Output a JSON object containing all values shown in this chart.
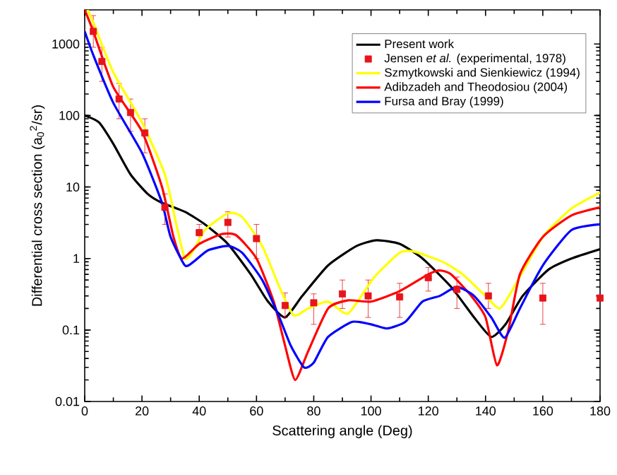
{
  "chart_data": {
    "type": "line",
    "xlabel": "Scattering angle (Deg)",
    "ylabel": "Differential cross section (a$_{0}$$^{2}$/sr)",
    "xlim": [
      0,
      180
    ],
    "xticks": [
      0,
      20,
      40,
      60,
      80,
      100,
      120,
      140,
      160,
      180
    ],
    "ylim": [
      0.01,
      3000
    ],
    "yticks": [
      0.01,
      0.1,
      1,
      10,
      100,
      1000
    ],
    "log": "y",
    "legend": "top right",
    "series": [
      {
        "name": "Present work",
        "color": "#000000",
        "x": [
          0,
          5,
          10,
          16,
          22,
          27,
          35,
          42,
          50,
          58,
          64,
          70,
          76,
          85,
          95,
          102,
          110,
          118,
          128,
          136,
          142,
          147,
          153,
          162,
          170,
          180
        ],
        "values": [
          100,
          80,
          40,
          15,
          8,
          6,
          4.5,
          3,
          1.6,
          0.6,
          0.25,
          0.15,
          0.3,
          0.8,
          1.5,
          1.8,
          1.6,
          1.0,
          0.4,
          0.15,
          0.08,
          0.12,
          0.3,
          0.7,
          1.0,
          1.35
        ]
      },
      {
        "name": "Jensen *et al.* (experimental, 1978)",
        "type": "scatter",
        "marker": "square",
        "color": "#e8141b",
        "x": [
          3,
          6,
          12,
          16,
          21,
          28,
          40,
          50,
          60,
          70,
          80,
          90,
          99,
          110,
          120,
          130,
          141,
          160,
          180
        ],
        "values": [
          1500,
          570,
          170,
          110,
          57,
          5.2,
          2.3,
          3.2,
          1.9,
          0.22,
          0.24,
          0.32,
          0.3,
          0.29,
          0.54,
          0.37,
          0.3,
          0.28,
          0.28
        ],
        "errors": [
          [
            900,
            2500
          ],
          [
            300,
            900
          ],
          [
            90,
            280
          ],
          [
            60,
            170
          ],
          [
            30,
            90
          ],
          [
            3,
            8
          ],
          [
            1.6,
            3
          ],
          [
            2,
            4.5
          ],
          [
            1,
            3
          ],
          [
            0.15,
            0.33
          ],
          [
            0.12,
            0.32
          ],
          [
            0.2,
            0.5
          ],
          [
            0.15,
            0.5
          ],
          [
            0.15,
            0.45
          ],
          [
            0.35,
            0.75
          ],
          [
            0.2,
            0.55
          ],
          [
            0.2,
            0.45
          ],
          [
            0.12,
            0.45
          ],
          null
        ]
      },
      {
        "name": "Szmytkowski and Sienkiewicz (1994)",
        "color": "#ffff00",
        "x": [
          1,
          3,
          10,
          20,
          28,
          32,
          35,
          38,
          42,
          50,
          55,
          62,
          68,
          73,
          78,
          85,
          92,
          101,
          110,
          115,
          125,
          132,
          140,
          145,
          150,
          160,
          170,
          180
        ],
        "values": [
          3000,
          2000,
          400,
          80,
          15,
          3,
          1.0,
          1.3,
          2.5,
          4.3,
          3.8,
          1.5,
          0.4,
          0.16,
          0.2,
          0.25,
          0.17,
          0.54,
          1.2,
          1.25,
          0.9,
          0.6,
          0.3,
          0.2,
          0.4,
          2,
          5,
          8.3
        ]
      },
      {
        "name": "Adibzadeh and Theodosiou (2004)",
        "color": "#ff0000",
        "x": [
          0,
          3,
          10,
          20,
          27,
          31,
          34,
          40,
          48,
          53,
          60,
          66,
          70,
          73.5,
          78,
          85,
          92,
          100,
          110,
          120,
          124,
          128,
          135,
          140,
          144,
          148,
          152,
          160,
          170,
          180
        ],
        "values": [
          3000,
          1500,
          250,
          60,
          10,
          2,
          1.0,
          1.6,
          2.2,
          2.1,
          1.0,
          0.25,
          0.06,
          0.02,
          0.05,
          0.2,
          0.26,
          0.25,
          0.35,
          0.6,
          0.68,
          0.6,
          0.3,
          0.15,
          0.032,
          0.1,
          0.6,
          2,
          4,
          5.2
        ]
      },
      {
        "name": "Fursa and Bray (1999)",
        "color": "#0000ff",
        "x": [
          0,
          3,
          10,
          20,
          27,
          30,
          35,
          38,
          43,
          50,
          55,
          62,
          68,
          72,
          76.6,
          80,
          85,
          93.5,
          100,
          105.6,
          112,
          118,
          124,
          130,
          136,
          142,
          146.7,
          152,
          160,
          170,
          180
        ],
        "values": [
          1500,
          700,
          150,
          30,
          6,
          2,
          0.8,
          0.9,
          1.3,
          1.5,
          1.2,
          0.5,
          0.15,
          0.06,
          0.03,
          0.035,
          0.08,
          0.13,
          0.12,
          0.105,
          0.13,
          0.25,
          0.3,
          0.4,
          0.3,
          0.15,
          0.078,
          0.2,
          0.8,
          2.5,
          3.0
        ]
      }
    ]
  }
}
